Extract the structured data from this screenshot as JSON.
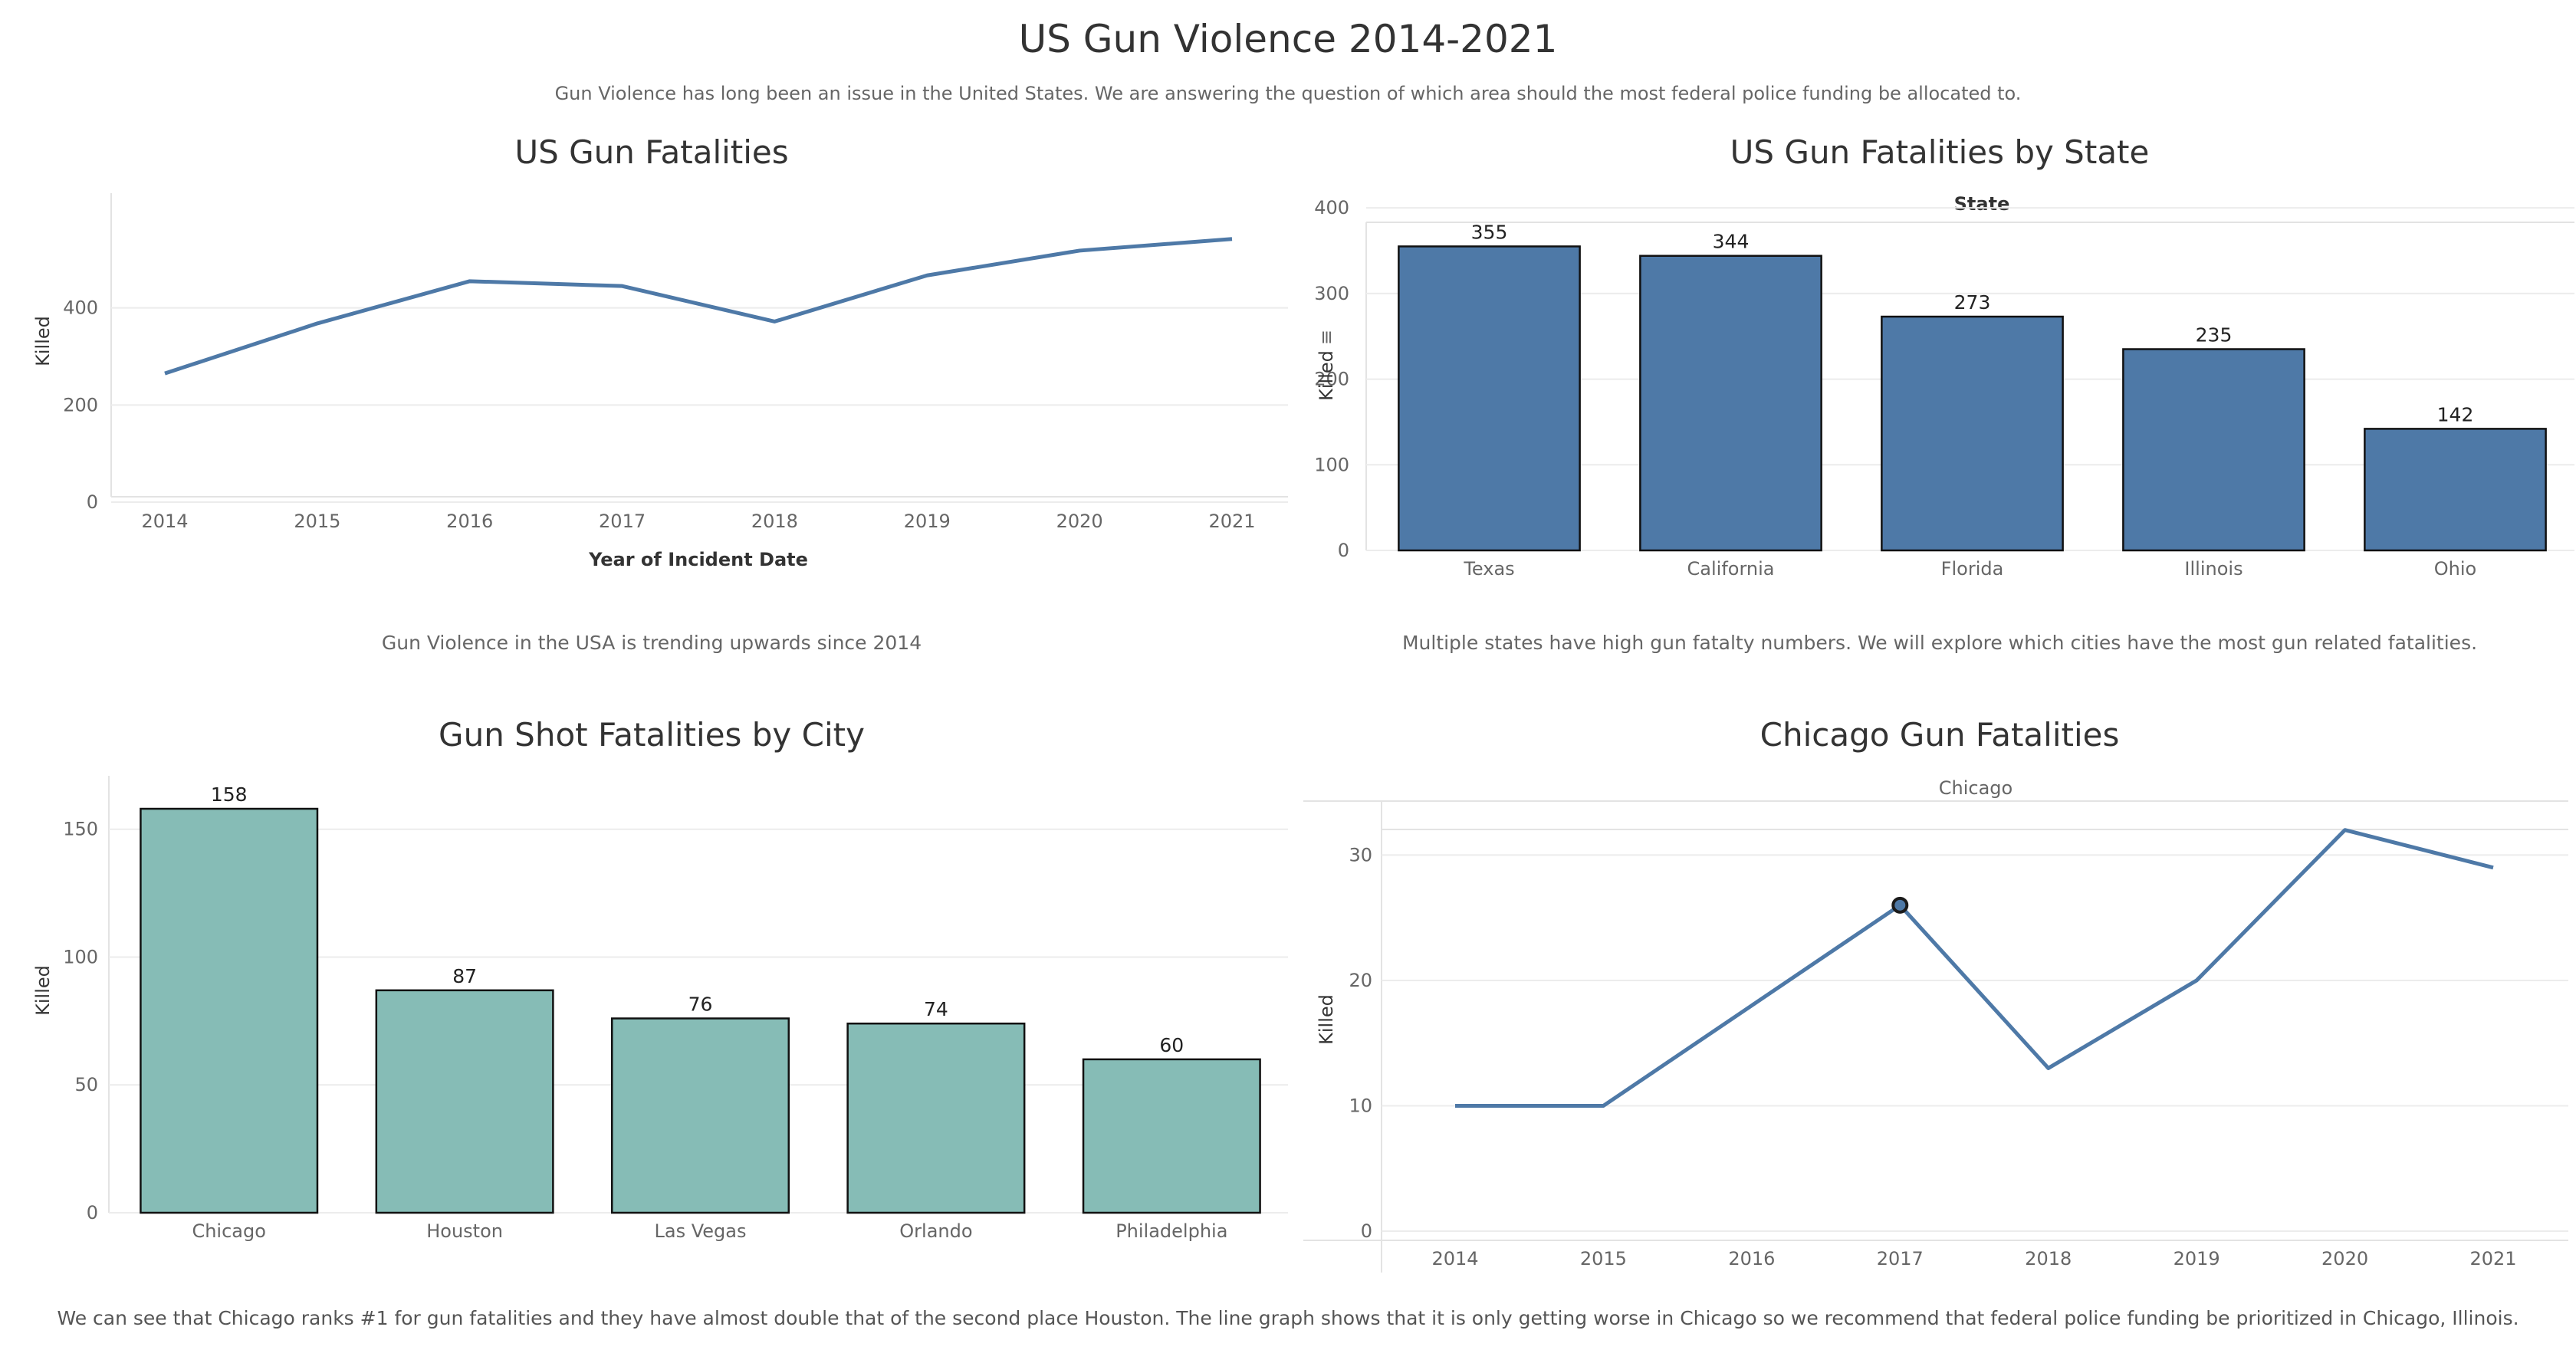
{
  "header": {
    "title": "US Gun Violence 2014-2021",
    "subtitle": "Gun Violence has long been an issue in the United States. We are answering the question of which area should the most federal police funding be allocated to."
  },
  "colors": {
    "line": "#4e79a7",
    "state_bar": "#4e79a7",
    "city_bar": "#86bcb6"
  },
  "chart_data": [
    {
      "id": "us_fatalities",
      "type": "line",
      "title": "US Gun Fatalities",
      "xlabel": "Year of Incident Date",
      "ylabel": "Killed",
      "x": [
        "2014",
        "2015",
        "2016",
        "2017",
        "2018",
        "2019",
        "2020",
        "2021"
      ],
      "values": [
        265,
        368,
        455,
        445,
        372,
        467,
        518,
        542
      ],
      "ylim": [
        0,
        600
      ],
      "yticks": [
        0,
        200,
        400
      ],
      "caption": "Gun Violence in the USA is trending upwards since 2014"
    },
    {
      "id": "state_fatalities",
      "type": "bar",
      "title": "US Gun Fatalities by State",
      "header_label": "State",
      "ylabel": "Killed",
      "categories": [
        "Texas",
        "California",
        "Florida",
        "Illinois",
        "Ohio"
      ],
      "values": [
        355,
        344,
        273,
        235,
        142
      ],
      "ylim": [
        0,
        410
      ],
      "yticks": [
        0,
        100,
        200,
        300,
        400
      ],
      "caption": "Multiple states have high gun fatalty numbers. We will explore which cities have the most gun related fatalities."
    },
    {
      "id": "city_fatalities",
      "type": "bar",
      "title": "Gun Shot Fatalities by City",
      "ylabel": "Killed",
      "categories": [
        "Chicago",
        "Houston",
        "Las Vegas",
        "Orlando",
        "Philadelphia"
      ],
      "values": [
        158,
        87,
        76,
        74,
        60
      ],
      "ylim": [
        0,
        170
      ],
      "yticks": [
        0,
        50,
        100,
        150
      ]
    },
    {
      "id": "chicago_fatalities",
      "type": "line",
      "title": "Chicago Gun Fatalities",
      "header_label": "Chicago",
      "ylabel": "Killed",
      "x": [
        "2014",
        "2015",
        "2016",
        "2017",
        "2018",
        "2019",
        "2020",
        "2021"
      ],
      "values": [
        10,
        10,
        18,
        26,
        13,
        20,
        32,
        29
      ],
      "ylim": [
        0,
        34
      ],
      "yticks": [
        0,
        10,
        20,
        30
      ],
      "highlight_year": "2017"
    }
  ],
  "footer": {
    "caption": "We can see that Chicago ranks #1 for gun fatalities and they have almost double that of the second place Houston. The line graph shows that it is only getting worse in Chicago so we recommend that federal police funding be prioritized in Chicago, Illinois."
  }
}
